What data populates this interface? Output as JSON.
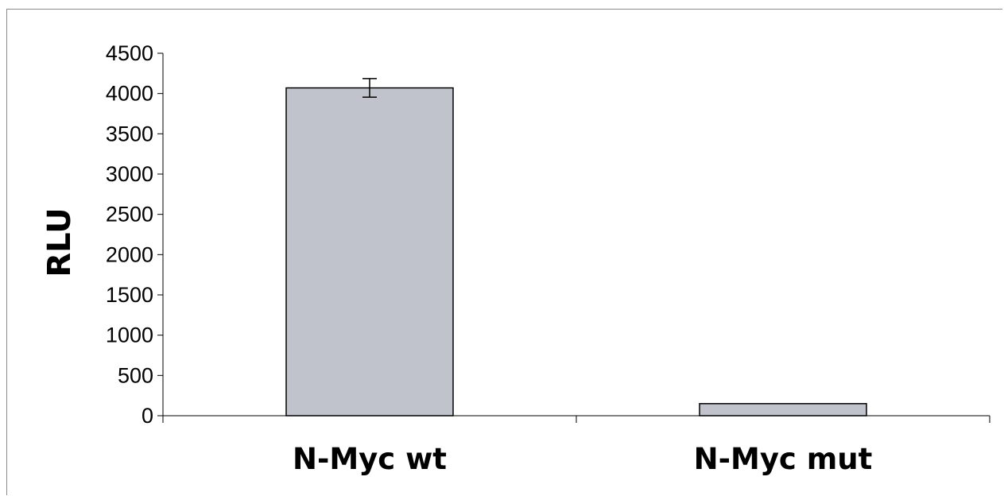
{
  "chart_data": {
    "type": "bar",
    "categories": [
      "N-Myc wt",
      "N-Myc mut"
    ],
    "values": [
      4070,
      150
    ],
    "error": [
      115,
      0
    ],
    "ylabel": "RLU",
    "xlabel": "",
    "ylim": [
      0,
      4500
    ],
    "yticks": [
      0,
      500,
      1000,
      1500,
      2000,
      2500,
      3000,
      3500,
      4000,
      4500
    ],
    "grid": false,
    "legend": "none",
    "colors": {
      "bar_fill": "#c0c3cb",
      "bar_stroke": "#000000",
      "axis": "#000000"
    }
  }
}
